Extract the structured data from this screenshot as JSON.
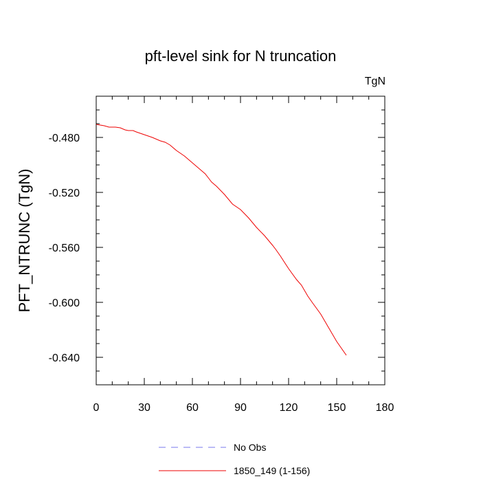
{
  "chart_data": {
    "type": "line",
    "title": "pft-level sink for N truncation",
    "units_label": "TgN",
    "xlabel": "",
    "ylabel": "PFT_NTRUNC  (TgN)",
    "xlim": [
      0,
      180
    ],
    "ylim": [
      -0.66,
      -0.45
    ],
    "xticks": [
      0,
      30,
      60,
      90,
      120,
      150,
      180
    ],
    "xtick_labels": [
      "0",
      "30",
      "60",
      "90",
      "120",
      "150",
      "180"
    ],
    "yticks": [
      -0.48,
      -0.52,
      -0.56,
      -0.6,
      -0.64
    ],
    "ytick_labels": [
      "-0.480",
      "-0.520",
      "-0.560",
      "-0.600",
      "-0.640"
    ],
    "grid": false,
    "legend_placement": "bottom",
    "series": [
      {
        "name": "No Obs",
        "color": "#7777ee",
        "dash": true,
        "x": [],
        "y": []
      },
      {
        "name": "1850_149 (1-156)",
        "color": "#ee0000",
        "dash": false,
        "x": [
          0,
          5,
          8,
          12,
          15,
          18,
          20,
          23,
          25,
          30,
          35,
          40,
          43,
          46,
          50,
          55,
          60,
          62,
          65,
          68,
          70,
          72,
          75,
          80,
          85,
          90,
          95,
          100,
          105,
          110,
          112,
          115,
          120,
          125,
          128,
          132,
          135,
          140,
          145,
          150,
          153,
          156
        ],
        "y": [
          -0.4705,
          -0.4715,
          -0.4725,
          -0.4725,
          -0.473,
          -0.4745,
          -0.475,
          -0.475,
          -0.476,
          -0.478,
          -0.48,
          -0.4825,
          -0.4835,
          -0.4855,
          -0.4895,
          -0.4935,
          -0.4985,
          -0.5005,
          -0.5035,
          -0.5065,
          -0.5095,
          -0.5125,
          -0.5155,
          -0.5215,
          -0.5285,
          -0.5325,
          -0.5385,
          -0.5455,
          -0.5515,
          -0.5585,
          -0.5615,
          -0.5665,
          -0.5755,
          -0.5835,
          -0.5875,
          -0.5955,
          -0.6005,
          -0.6085,
          -0.6185,
          -0.6285,
          -0.6335,
          -0.6385
        ]
      }
    ]
  }
}
